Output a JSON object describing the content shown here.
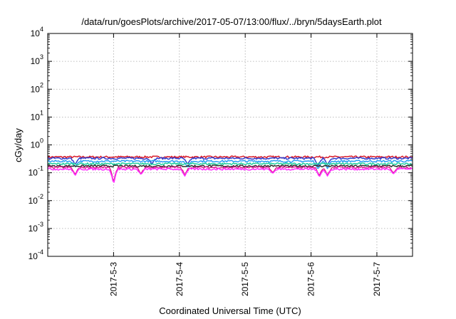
{
  "chart_data": {
    "type": "line",
    "title": "/data/run/goesPlots/archive/2017-05-07/13:00/flux/../bryn/5daysEarth.plot",
    "xlabel": "Coordinated Universal Time (UTC)",
    "ylabel": "cGy/day",
    "y_scale": "log",
    "ylim": [
      0.0001,
      10000
    ],
    "xlim": [
      "2017-05-02 00:00",
      "2017-05-07 13:00"
    ],
    "x_ticks": [
      "2017-5-3",
      "2017-5-4",
      "2017-5-5",
      "2017-5-6",
      "2017-5-7"
    ],
    "y_ticks": [
      {
        "base": "10",
        "exp": "-4"
      },
      {
        "base": "10",
        "exp": "-3"
      },
      {
        "base": "10",
        "exp": "-2"
      },
      {
        "base": "10",
        "exp": "-1"
      },
      {
        "base": "10",
        "exp": "0"
      },
      {
        "base": "10",
        "exp": "1"
      },
      {
        "base": "10",
        "exp": "2"
      },
      {
        "base": "10",
        "exp": "3"
      },
      {
        "base": "10",
        "exp": "4"
      }
    ],
    "grid": true,
    "legend": "none",
    "series": [
      {
        "color": "#d81b2a",
        "level": 0.37,
        "dips": []
      },
      {
        "color": "#2f3fcf",
        "level": 0.33,
        "dips": [
          [
            "2017-05-02 10:00",
            0.2
          ],
          [
            "2017-05-03 14:00",
            0.21
          ],
          [
            "2017-05-04 03:00",
            0.2
          ],
          [
            "2017-05-06 02:30",
            0.17
          ],
          [
            "2017-05-06 06:00",
            0.19
          ]
        ]
      },
      {
        "color": "#2a9df4",
        "level": 0.26,
        "dips": [
          [
            "2017-05-02 10:00",
            0.16
          ],
          [
            "2017-05-04 03:00",
            0.15
          ],
          [
            "2017-05-06 02:30",
            0.13
          ],
          [
            "2017-05-06 06:00",
            0.14
          ]
        ]
      },
      {
        "color": "#1fcf9f",
        "level": 0.21,
        "dips": []
      },
      {
        "color": "#2e2e2e",
        "level": 0.175,
        "dips": []
      },
      {
        "color": "#e01f8f",
        "level": 0.155,
        "dips": [
          [
            "2017-05-02 10:00",
            0.085
          ],
          [
            "2017-05-03 00:00",
            0.04
          ],
          [
            "2017-05-03 10:00",
            0.09
          ],
          [
            "2017-05-04 02:00",
            0.08
          ],
          [
            "2017-05-05 10:00",
            0.1
          ],
          [
            "2017-05-06 03:00",
            0.075
          ],
          [
            "2017-05-06 06:00",
            0.08
          ],
          [
            "2017-05-07 06:00",
            0.095
          ]
        ]
      },
      {
        "color": "#ff2bff",
        "level": 0.135,
        "dips": [
          [
            "2017-05-02 10:00",
            0.08
          ],
          [
            "2017-05-03 00:00",
            0.035
          ],
          [
            "2017-05-03 10:00",
            0.085
          ],
          [
            "2017-05-04 02:00",
            0.075
          ],
          [
            "2017-05-05 10:00",
            0.095
          ],
          [
            "2017-05-06 03:00",
            0.07
          ],
          [
            "2017-05-06 06:00",
            0.075
          ],
          [
            "2017-05-07 06:00",
            0.09
          ]
        ]
      }
    ]
  }
}
